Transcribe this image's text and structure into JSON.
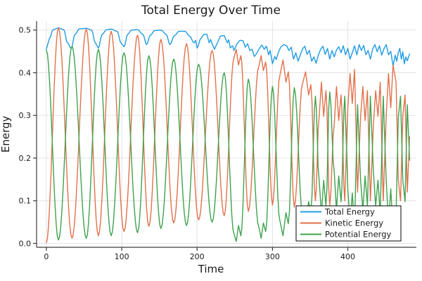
{
  "figure": {
    "background": "#ffffff"
  },
  "chart_data": {
    "type": "line",
    "title": "Total Energy Over Time",
    "xlabel": "Time",
    "ylabel": "Energy",
    "xlim": [
      -13,
      491
    ],
    "ylim": [
      -0.009,
      0.521
    ],
    "xticks": [
      0,
      100,
      200,
      300,
      400
    ],
    "yticks": [
      0.0,
      0.1,
      0.2,
      0.3,
      0.4,
      0.5
    ],
    "grid": true,
    "grid_color": "#e3e3e3",
    "axis_color": "#3c3c3c",
    "text_color": "#1a1a1a",
    "legend": {
      "position": "bottom-right",
      "background": "#ffffff",
      "border_color": "#000000"
    },
    "series": [
      {
        "name": "Total Energy",
        "color": "#1f9be3",
        "points": [
          [
            0,
            0.455
          ],
          [
            4,
            0.48
          ],
          [
            9,
            0.501
          ],
          [
            16,
            0.505
          ],
          [
            23,
            0.501
          ],
          [
            28,
            0.47
          ],
          [
            33,
            0.457
          ],
          [
            38,
            0.49
          ],
          [
            44,
            0.503
          ],
          [
            53,
            0.504
          ],
          [
            60,
            0.5
          ],
          [
            65,
            0.47
          ],
          [
            69,
            0.458
          ],
          [
            74,
            0.49
          ],
          [
            80,
            0.501
          ],
          [
            86,
            0.502
          ],
          [
            94,
            0.497
          ],
          [
            99,
            0.47
          ],
          [
            103,
            0.461
          ],
          [
            108,
            0.49
          ],
          [
            113,
            0.5
          ],
          [
            121,
            0.501
          ],
          [
            128,
            0.49
          ],
          [
            133,
            0.466
          ],
          [
            138,
            0.488
          ],
          [
            144,
            0.499
          ],
          [
            152,
            0.5
          ],
          [
            159,
            0.49
          ],
          [
            164,
            0.466
          ],
          [
            170,
            0.487
          ],
          [
            176,
            0.497
          ],
          [
            184,
            0.497
          ],
          [
            190,
            0.486
          ],
          [
            196,
            0.47
          ],
          [
            198,
            0.476
          ],
          [
            200,
            0.458
          ],
          [
            205,
            0.48
          ],
          [
            209,
            0.49
          ],
          [
            213,
            0.49
          ],
          [
            216,
            0.47
          ],
          [
            218,
            0.478
          ],
          [
            220,
            0.468
          ],
          [
            223,
            0.455
          ],
          [
            227,
            0.47
          ],
          [
            231,
            0.486
          ],
          [
            236,
            0.487
          ],
          [
            240,
            0.47
          ],
          [
            242,
            0.477
          ],
          [
            244,
            0.458
          ],
          [
            247,
            0.463
          ],
          [
            249,
            0.452
          ],
          [
            253,
            0.468
          ],
          [
            257,
            0.476
          ],
          [
            261,
            0.475
          ],
          [
            264,
            0.46
          ],
          [
            267,
            0.468
          ],
          [
            270,
            0.452
          ],
          [
            273,
            0.455
          ],
          [
            276,
            0.438
          ],
          [
            279,
            0.445
          ],
          [
            283,
            0.458
          ],
          [
            286,
            0.465
          ],
          [
            289,
            0.455
          ],
          [
            292,
            0.462
          ],
          [
            295,
            0.442
          ],
          [
            297,
            0.452
          ],
          [
            300,
            0.421
          ],
          [
            303,
            0.438
          ],
          [
            305,
            0.431
          ],
          [
            308,
            0.448
          ],
          [
            311,
            0.46
          ],
          [
            315,
            0.466
          ],
          [
            319,
            0.463
          ],
          [
            322,
            0.452
          ],
          [
            325,
            0.46
          ],
          [
            328,
            0.432
          ],
          [
            331,
            0.447
          ],
          [
            334,
            0.427
          ],
          [
            337,
            0.442
          ],
          [
            340,
            0.456
          ],
          [
            343,
            0.462
          ],
          [
            346,
            0.443
          ],
          [
            349,
            0.452
          ],
          [
            352,
            0.427
          ],
          [
            355,
            0.437
          ],
          [
            358,
            0.422
          ],
          [
            361,
            0.442
          ],
          [
            364,
            0.455
          ],
          [
            367,
            0.462
          ],
          [
            370,
            0.443
          ],
          [
            373,
            0.457
          ],
          [
            376,
            0.432
          ],
          [
            379,
            0.452
          ],
          [
            382,
            0.437
          ],
          [
            385,
            0.453
          ],
          [
            388,
            0.461
          ],
          [
            391,
            0.447
          ],
          [
            394,
            0.463
          ],
          [
            397,
            0.442
          ],
          [
            400,
            0.457
          ],
          [
            403,
            0.432
          ],
          [
            406,
            0.447
          ],
          [
            409,
            0.463
          ],
          [
            412,
            0.442
          ],
          [
            415,
            0.466
          ],
          [
            418,
            0.452
          ],
          [
            421,
            0.464
          ],
          [
            424,
            0.442
          ],
          [
            427,
            0.452
          ],
          [
            430,
            0.432
          ],
          [
            433,
            0.456
          ],
          [
            436,
            0.466
          ],
          [
            439,
            0.449
          ],
          [
            442,
            0.463
          ],
          [
            445,
            0.441
          ],
          [
            448,
            0.456
          ],
          [
            451,
            0.466
          ],
          [
            454,
            0.442
          ],
          [
            457,
            0.45
          ],
          [
            460,
            0.416
          ],
          [
            463,
            0.441
          ],
          [
            465,
            0.427
          ],
          [
            467,
            0.447
          ],
          [
            469,
            0.457
          ],
          [
            471,
            0.432
          ],
          [
            473,
            0.449
          ],
          [
            475,
            0.421
          ],
          [
            477,
            0.437
          ],
          [
            479,
            0.428
          ],
          [
            482,
            0.444
          ]
        ]
      },
      {
        "name": "Kinetic Energy",
        "color": "#e2714b",
        "points": [
          [
            0,
            0.002
          ],
          [
            16,
            0.505
          ],
          [
            34,
            0.012
          ],
          [
            53,
            0.502
          ],
          [
            69,
            0.018
          ],
          [
            86,
            0.497
          ],
          [
            103,
            0.028
          ],
          [
            121,
            0.488
          ],
          [
            136,
            0.04
          ],
          [
            152,
            0.478
          ],
          [
            169,
            0.048
          ],
          [
            186,
            0.468
          ],
          [
            202,
            0.055
          ],
          [
            220,
            0.452
          ],
          [
            236,
            0.065
          ],
          [
            249,
            0.435
          ],
          [
            252,
            0.455
          ],
          [
            255,
            0.418
          ],
          [
            258,
            0.44
          ],
          [
            268,
            0.075
          ],
          [
            282,
            0.415
          ],
          [
            285,
            0.44
          ],
          [
            288,
            0.405
          ],
          [
            291,
            0.425
          ],
          [
            300,
            0.09
          ],
          [
            310,
            0.395
          ],
          [
            314,
            0.43
          ],
          [
            318,
            0.378
          ],
          [
            321,
            0.402
          ],
          [
            329,
            0.085
          ],
          [
            340,
            0.375
          ],
          [
            344,
            0.402
          ],
          [
            348,
            0.348
          ],
          [
            351,
            0.372
          ],
          [
            357,
            0.1
          ],
          [
            362,
            0.298
          ],
          [
            365,
            0.378
          ],
          [
            368,
            0.298
          ],
          [
            371,
            0.358
          ],
          [
            376,
            0.09
          ],
          [
            382,
            0.278
          ],
          [
            385,
            0.368
          ],
          [
            388,
            0.288
          ],
          [
            391,
            0.348
          ],
          [
            396,
            0.1
          ],
          [
            400,
            0.318
          ],
          [
            403,
            0.398
          ],
          [
            406,
            0.328
          ],
          [
            409,
            0.408
          ],
          [
            413,
            0.12
          ],
          [
            417,
            0.298
          ],
          [
            420,
            0.368
          ],
          [
            423,
            0.288
          ],
          [
            426,
            0.358
          ],
          [
            430,
            0.1
          ],
          [
            434,
            0.278
          ],
          [
            437,
            0.358
          ],
          [
            440,
            0.298
          ],
          [
            443,
            0.378
          ],
          [
            447,
            0.1
          ],
          [
            451,
            0.298
          ],
          [
            454,
            0.398
          ],
          [
            457,
            0.318
          ],
          [
            460,
            0.418
          ],
          [
            464,
            0.378
          ],
          [
            467,
            0.15
          ],
          [
            470,
            0.1
          ],
          [
            473,
            0.298
          ],
          [
            476,
            0.348
          ],
          [
            479,
            0.12
          ],
          [
            482,
            0.25
          ]
        ]
      },
      {
        "name": "Potential Energy",
        "color": "#3fa24d",
        "points": [
          [
            0,
            0.453
          ],
          [
            16,
            0.008
          ],
          [
            34,
            0.462
          ],
          [
            53,
            0.012
          ],
          [
            69,
            0.455
          ],
          [
            86,
            0.018
          ],
          [
            103,
            0.447
          ],
          [
            121,
            0.025
          ],
          [
            136,
            0.44
          ],
          [
            152,
            0.035
          ],
          [
            169,
            0.432
          ],
          [
            186,
            0.042
          ],
          [
            202,
            0.42
          ],
          [
            220,
            0.05
          ],
          [
            236,
            0.4
          ],
          [
            249,
            0.022
          ],
          [
            252,
            0.005
          ],
          [
            255,
            0.042
          ],
          [
            258,
            0.018
          ],
          [
            268,
            0.385
          ],
          [
            282,
            0.038
          ],
          [
            285,
            0.012
          ],
          [
            288,
            0.048
          ],
          [
            291,
            0.028
          ],
          [
            300,
            0.368
          ],
          [
            310,
            0.052
          ],
          [
            314,
            0.018
          ],
          [
            318,
            0.072
          ],
          [
            321,
            0.046
          ],
          [
            329,
            0.365
          ],
          [
            340,
            0.068
          ],
          [
            344,
            0.042
          ],
          [
            348,
            0.098
          ],
          [
            351,
            0.072
          ],
          [
            357,
            0.345
          ],
          [
            362,
            0.148
          ],
          [
            365,
            0.068
          ],
          [
            368,
            0.148
          ],
          [
            371,
            0.088
          ],
          [
            376,
            0.355
          ],
          [
            382,
            0.168
          ],
          [
            385,
            0.078
          ],
          [
            388,
            0.158
          ],
          [
            391,
            0.098
          ],
          [
            396,
            0.345
          ],
          [
            400,
            0.128
          ],
          [
            403,
            0.048
          ],
          [
            406,
            0.118
          ],
          [
            409,
            0.038
          ],
          [
            413,
            0.325
          ],
          [
            417,
            0.148
          ],
          [
            420,
            0.078
          ],
          [
            423,
            0.158
          ],
          [
            426,
            0.088
          ],
          [
            430,
            0.345
          ],
          [
            434,
            0.168
          ],
          [
            437,
            0.088
          ],
          [
            440,
            0.148
          ],
          [
            443,
            0.068
          ],
          [
            447,
            0.345
          ],
          [
            451,
            0.148
          ],
          [
            454,
            0.048
          ],
          [
            457,
            0.128
          ],
          [
            460,
            0.028
          ],
          [
            464,
            0.068
          ],
          [
            467,
            0.295
          ],
          [
            470,
            0.345
          ],
          [
            473,
            0.148
          ],
          [
            476,
            0.098
          ],
          [
            479,
            0.325
          ],
          [
            482,
            0.195
          ]
        ]
      }
    ]
  }
}
